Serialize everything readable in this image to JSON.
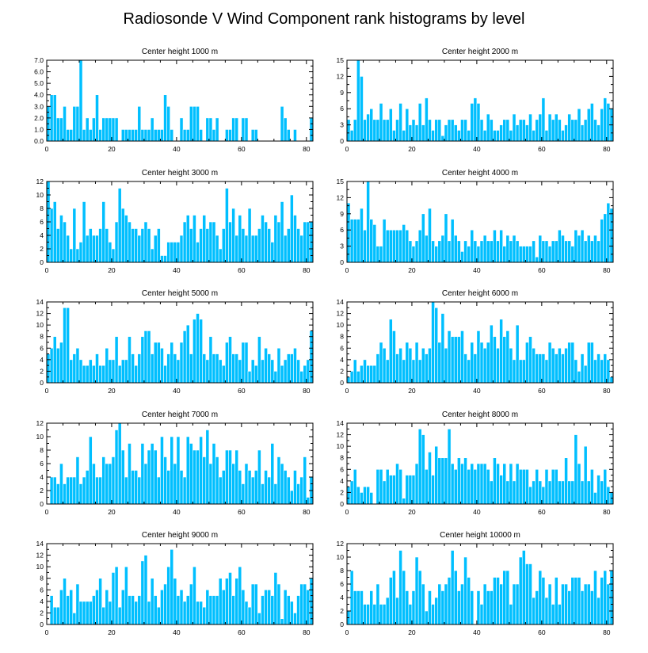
{
  "figure": {
    "title": "Radiosonde V Wind Component rank histograms by level",
    "bar_color": "#00bfff"
  },
  "chart_data": [
    {
      "type": "bar",
      "title": "Center height 1000 m",
      "xlim": [
        0,
        82
      ],
      "ylim": [
        0,
        7
      ],
      "xticks": [
        0,
        20,
        40,
        60,
        80
      ],
      "yticks": [
        0,
        1,
        2,
        3,
        4,
        5,
        6,
        7
      ],
      "ytick_labels": [
        "0.0",
        "1.0",
        "2.0",
        "3.0",
        "4.0",
        "5.0",
        "6.0",
        "7.0"
      ],
      "values": [
        3,
        4,
        4,
        2,
        2,
        3,
        1,
        1,
        3,
        3,
        7,
        1,
        2,
        1,
        2,
        4,
        1,
        2,
        2,
        2,
        2,
        2,
        0,
        1,
        1,
        1,
        1,
        1,
        3,
        1,
        1,
        1,
        2,
        1,
        1,
        1,
        4,
        3,
        1,
        0,
        0,
        2,
        1,
        1,
        3,
        3,
        3,
        1,
        0,
        2,
        2,
        1,
        2,
        0,
        0,
        1,
        1,
        2,
        2,
        0,
        2,
        2,
        0,
        1,
        1,
        0,
        0,
        0,
        0,
        0,
        0,
        0,
        3,
        2,
        1,
        0,
        1,
        0,
        0,
        0,
        0,
        2
      ]
    },
    {
      "type": "bar",
      "title": "Center height 2000 m",
      "xlim": [
        0,
        82
      ],
      "ylim": [
        0,
        15
      ],
      "xticks": [
        0,
        20,
        40,
        60,
        80
      ],
      "yticks": [
        0,
        3,
        6,
        9,
        12,
        15
      ],
      "ytick_labels": [
        "0",
        "3",
        "6",
        "9",
        "12",
        "15"
      ],
      "values": [
        4,
        2,
        4,
        15,
        12,
        4,
        5,
        6,
        4,
        4,
        7,
        4,
        4,
        6,
        2,
        4,
        7,
        2,
        6,
        3,
        4,
        3,
        7,
        3,
        8,
        4,
        2,
        4,
        4,
        1,
        3,
        4,
        4,
        3,
        2,
        4,
        4,
        2,
        7,
        8,
        7,
        4,
        2,
        5,
        4,
        2,
        2,
        3,
        4,
        4,
        2,
        5,
        3,
        4,
        4,
        3,
        5,
        2,
        4,
        5,
        8,
        2,
        5,
        4,
        5,
        4,
        2,
        3,
        5,
        4,
        4,
        6,
        3,
        4,
        6,
        7,
        4,
        3,
        6,
        8,
        7,
        6
      ]
    },
    {
      "type": "bar",
      "title": "Center height 3000 m",
      "xlim": [
        0,
        82
      ],
      "ylim": [
        0,
        12
      ],
      "xticks": [
        0,
        20,
        40,
        60,
        80
      ],
      "yticks": [
        0,
        2,
        4,
        6,
        8,
        10,
        12
      ],
      "ytick_labels": [
        "0",
        "2",
        "4",
        "6",
        "8",
        "10",
        "12"
      ],
      "values": [
        12,
        8,
        9,
        5,
        7,
        6,
        4,
        2,
        8,
        2,
        3,
        9,
        4,
        5,
        4,
        4,
        5,
        9,
        5,
        3,
        2,
        6,
        11,
        8,
        7,
        6,
        5,
        5,
        4,
        5,
        6,
        5,
        2,
        4,
        5,
        1,
        1,
        3,
        3,
        3,
        3,
        4,
        6,
        7,
        5,
        7,
        3,
        5,
        7,
        5,
        6,
        6,
        4,
        2,
        5,
        11,
        6,
        8,
        4,
        7,
        5,
        4,
        8,
        4,
        4,
        5,
        7,
        6,
        5,
        3,
        7,
        6,
        9,
        4,
        5,
        10,
        7,
        5,
        4,
        6,
        6,
        6
      ]
    },
    {
      "type": "bar",
      "title": "Center height 4000 m",
      "xlim": [
        0,
        82
      ],
      "ylim": [
        0,
        15
      ],
      "xticks": [
        0,
        20,
        40,
        60,
        80
      ],
      "yticks": [
        0,
        3,
        6,
        9,
        12,
        15
      ],
      "ytick_labels": [
        "0",
        "3",
        "6",
        "9",
        "12",
        "15"
      ],
      "values": [
        11,
        8,
        8,
        8,
        10,
        6,
        15,
        8,
        7,
        3,
        3,
        8,
        6,
        6,
        6,
        6,
        6,
        7,
        6,
        4,
        3,
        4,
        6,
        9,
        5,
        10,
        4,
        3,
        4,
        5,
        9,
        4,
        8,
        5,
        4,
        2,
        4,
        3,
        6,
        4,
        3,
        4,
        5,
        4,
        4,
        6,
        4,
        6,
        3,
        5,
        4,
        5,
        4,
        3,
        3,
        3,
        3,
        4,
        1,
        5,
        4,
        4,
        3,
        4,
        4,
        6,
        5,
        4,
        4,
        3,
        6,
        5,
        6,
        4,
        5,
        4,
        5,
        4,
        8,
        9,
        11,
        10
      ]
    },
    {
      "type": "bar",
      "title": "Center height 5000 m",
      "xlim": [
        0,
        82
      ],
      "ylim": [
        0,
        14
      ],
      "xticks": [
        0,
        20,
        40,
        60,
        80
      ],
      "yticks": [
        0,
        2,
        4,
        6,
        8,
        10,
        12,
        14
      ],
      "ytick_labels": [
        "0",
        "2",
        "4",
        "6",
        "8",
        "10",
        "12",
        "14"
      ],
      "values": [
        5,
        6,
        8,
        6,
        7,
        13,
        13,
        4,
        5,
        6,
        4,
        3,
        3,
        4,
        3,
        5,
        3,
        3,
        6,
        4,
        4,
        8,
        3,
        4,
        4,
        8,
        5,
        3,
        5,
        8,
        9,
        9,
        5,
        7,
        7,
        6,
        3,
        5,
        7,
        5,
        4,
        7,
        9,
        10,
        5,
        11,
        12,
        11,
        5,
        4,
        8,
        5,
        5,
        4,
        3,
        7,
        8,
        5,
        5,
        4,
        7,
        7,
        2,
        4,
        3,
        8,
        4,
        6,
        5,
        4,
        2,
        6,
        3,
        4,
        5,
        5,
        6,
        4,
        2,
        3,
        4,
        9
      ]
    },
    {
      "type": "bar",
      "title": "Center height 6000 m",
      "xlim": [
        0,
        82
      ],
      "ylim": [
        0,
        14
      ],
      "xticks": [
        0,
        20,
        40,
        60,
        80
      ],
      "yticks": [
        0,
        2,
        4,
        6,
        8,
        10,
        12,
        14
      ],
      "ytick_labels": [
        "0",
        "2",
        "4",
        "6",
        "8",
        "10",
        "12",
        "14"
      ],
      "values": [
        1,
        2,
        4,
        2,
        3,
        4,
        3,
        3,
        3,
        5,
        7,
        6,
        4,
        11,
        9,
        5,
        6,
        4,
        7,
        6,
        4,
        7,
        4,
        6,
        5,
        6,
        14,
        13,
        7,
        12,
        6,
        9,
        8,
        8,
        8,
        9,
        5,
        4,
        7,
        5,
        9,
        7,
        6,
        7,
        10,
        8,
        6,
        11,
        8,
        9,
        6,
        4,
        10,
        4,
        4,
        7,
        8,
        6,
        5,
        5,
        5,
        4,
        7,
        6,
        5,
        6,
        5,
        6,
        7,
        7,
        4,
        2,
        5,
        3,
        7,
        7,
        4,
        5,
        4,
        5,
        4,
        1
      ]
    },
    {
      "type": "bar",
      "title": "Center height 7000 m",
      "xlim": [
        0,
        82
      ],
      "ylim": [
        0,
        12
      ],
      "xticks": [
        0,
        20,
        40,
        60,
        80
      ],
      "yticks": [
        0,
        2,
        4,
        6,
        8,
        10,
        12
      ],
      "ytick_labels": [
        "0",
        "2",
        "4",
        "6",
        "8",
        "10",
        "12"
      ],
      "values": [
        0,
        4,
        4,
        3,
        6,
        3,
        4,
        4,
        4,
        7,
        3,
        4,
        5,
        10,
        6,
        4,
        4,
        7,
        6,
        6,
        7,
        11,
        12,
        8,
        4,
        9,
        5,
        5,
        4,
        9,
        6,
        8,
        9,
        8,
        4,
        10,
        7,
        5,
        10,
        6,
        10,
        5,
        4,
        10,
        9,
        8,
        8,
        10,
        7,
        11,
        6,
        9,
        7,
        4,
        5,
        8,
        8,
        6,
        8,
        5,
        3,
        6,
        5,
        4,
        5,
        8,
        3,
        5,
        4,
        9,
        3,
        7,
        6,
        5,
        4,
        2,
        5,
        3,
        4,
        7,
        1,
        4
      ]
    },
    {
      "type": "bar",
      "title": "Center height 8000 m",
      "xlim": [
        0,
        82
      ],
      "ylim": [
        0,
        14
      ],
      "xticks": [
        0,
        20,
        40,
        60,
        80
      ],
      "yticks": [
        0,
        2,
        4,
        6,
        8,
        10,
        12,
        14
      ],
      "ytick_labels": [
        "0",
        "2",
        "4",
        "6",
        "8",
        "10",
        "12",
        "14"
      ],
      "values": [
        3,
        4,
        6,
        3,
        2,
        3,
        3,
        2,
        0,
        6,
        6,
        4,
        6,
        5,
        5,
        7,
        6,
        1,
        5,
        5,
        5,
        7,
        13,
        12,
        6,
        9,
        5,
        10,
        8,
        8,
        8,
        13,
        7,
        6,
        8,
        7,
        8,
        6,
        7,
        6,
        7,
        7,
        7,
        6,
        4,
        8,
        7,
        5,
        7,
        4,
        7,
        4,
        7,
        6,
        6,
        6,
        3,
        4,
        6,
        4,
        3,
        6,
        4,
        6,
        6,
        4,
        4,
        8,
        4,
        4,
        12,
        7,
        4,
        10,
        4,
        6,
        2,
        5,
        4,
        6,
        3,
        2
      ]
    },
    {
      "type": "bar",
      "title": "Center height 9000 m",
      "xlim": [
        0,
        82
      ],
      "ylim": [
        0,
        14
      ],
      "xticks": [
        0,
        20,
        40,
        60,
        80
      ],
      "yticks": [
        0,
        2,
        4,
        6,
        8,
        10,
        12,
        14
      ],
      "ytick_labels": [
        "0",
        "2",
        "4",
        "6",
        "8",
        "10",
        "12",
        "14"
      ],
      "values": [
        0,
        5,
        3,
        3,
        6,
        8,
        5,
        6,
        2,
        7,
        4,
        4,
        4,
        4,
        5,
        6,
        8,
        3,
        6,
        4,
        9,
        10,
        3,
        6,
        10,
        5,
        5,
        4,
        5,
        11,
        12,
        4,
        8,
        5,
        3,
        6,
        7,
        10,
        13,
        8,
        5,
        6,
        4,
        5,
        7,
        10,
        4,
        4,
        3,
        6,
        5,
        5,
        5,
        8,
        6,
        8,
        9,
        5,
        8,
        10,
        6,
        4,
        3,
        7,
        7,
        2,
        5,
        6,
        6,
        5,
        9,
        7,
        1,
        6,
        5,
        4,
        2,
        5,
        7,
        7,
        6,
        8
      ]
    },
    {
      "type": "bar",
      "title": "Center height 10000 m",
      "xlim": [
        0,
        82
      ],
      "ylim": [
        0,
        12
      ],
      "xticks": [
        0,
        20,
        40,
        60,
        80
      ],
      "yticks": [
        0,
        2,
        4,
        6,
        8,
        10,
        12
      ],
      "ytick_labels": [
        "0",
        "2",
        "4",
        "6",
        "8",
        "10",
        "12"
      ],
      "values": [
        2,
        8,
        5,
        5,
        5,
        3,
        3,
        5,
        3,
        6,
        3,
        3,
        4,
        7,
        8,
        4,
        11,
        8,
        5,
        3,
        5,
        10,
        8,
        6,
        2,
        5,
        3,
        4,
        6,
        5,
        6,
        7,
        11,
        8,
        5,
        6,
        10,
        7,
        5,
        0,
        5,
        3,
        6,
        5,
        5,
        7,
        7,
        6,
        8,
        8,
        3,
        6,
        6,
        10,
        11,
        9,
        9,
        4,
        5,
        8,
        7,
        4,
        6,
        3,
        7,
        3,
        6,
        6,
        5,
        7,
        7,
        7,
        5,
        6,
        6,
        5,
        8,
        4,
        7,
        8,
        6,
        8
      ]
    }
  ]
}
